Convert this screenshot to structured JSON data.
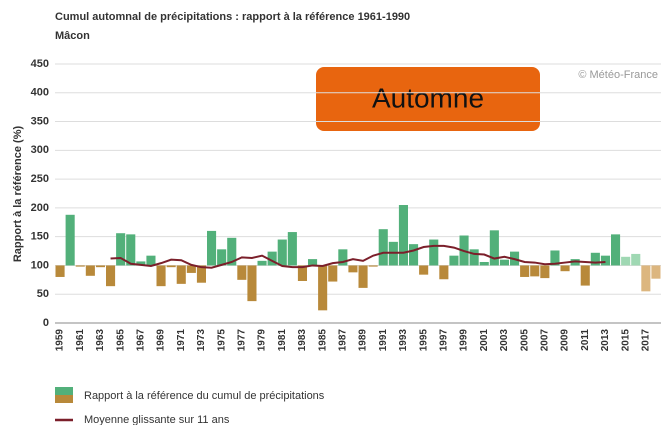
{
  "chart_data": {
    "type": "bar",
    "title": "Cumul automnal de précipitations : rapport à la référence 1961-1990",
    "subtitle": "Mâcon",
    "ylabel": "Rapport à la référence (%)",
    "watermark": "© Météo-France",
    "badge": "Automne",
    "reference": 100,
    "ylim": [
      0,
      450
    ],
    "yticks": [
      0,
      50,
      100,
      150,
      200,
      250,
      300,
      350,
      400,
      450
    ],
    "grid": true,
    "categories": [
      "1959",
      null,
      "1961",
      null,
      "1963",
      null,
      "1965",
      null,
      "1967",
      null,
      "1969",
      null,
      "1971",
      null,
      "1973",
      null,
      "1975",
      null,
      "1977",
      null,
      "1979",
      null,
      "1981",
      null,
      "1983",
      null,
      "1985",
      null,
      "1987",
      null,
      "1989",
      null,
      "1991",
      null,
      "1993",
      null,
      "1995",
      null,
      "1997",
      null,
      "1999",
      null,
      "2001",
      null,
      "2003",
      null,
      "2005",
      null,
      "2007",
      null,
      "2009",
      null,
      "2011",
      null,
      "2013",
      null,
      "2015",
      null,
      "2017",
      null
    ],
    "series": [
      {
        "name": "Rapport à la référence du cumul de précipitations",
        "color": "#52b07a",
        "color_below": "#b8893a",
        "values": [
          80,
          188,
          98,
          82,
          97,
          64,
          156,
          154,
          107,
          117,
          64,
          97,
          68,
          87,
          70,
          160,
          128,
          148,
          75,
          38,
          108,
          124,
          145,
          158,
          73,
          111,
          22,
          72,
          128,
          88,
          61,
          98,
          163,
          141,
          205,
          137,
          84,
          145,
          76,
          117,
          152,
          128,
          106,
          161,
          110,
          124,
          80,
          81,
          78,
          126,
          90,
          111,
          65,
          122,
          117,
          154,
          115,
          120,
          55,
          77
        ],
        "colors": [
          "#b8893a",
          "#52b07a",
          "#b8893a",
          "#b8893a",
          "#b8893a",
          "#b8893a",
          "#52b07a",
          "#52b07a",
          "#52b07a",
          "#52b07a",
          "#b8893a",
          "#b8893a",
          "#b8893a",
          "#b8893a",
          "#b8893a",
          "#52b07a",
          "#52b07a",
          "#52b07a",
          "#b8893a",
          "#b8893a",
          "#52b07a",
          "#52b07a",
          "#52b07a",
          "#52b07a",
          "#b8893a",
          "#52b07a",
          "#b8893a",
          "#b8893a",
          "#52b07a",
          "#b8893a",
          "#b8893a",
          "#b8893a",
          "#52b07a",
          "#52b07a",
          "#52b07a",
          "#52b07a",
          "#b8893a",
          "#52b07a",
          "#b8893a",
          "#52b07a",
          "#52b07a",
          "#52b07a",
          "#52b07a",
          "#52b07a",
          "#52b07a",
          "#52b07a",
          "#b8893a",
          "#b8893a",
          "#b8893a",
          "#52b07a",
          "#b8893a",
          "#52b07a",
          "#b8893a",
          "#52b07a",
          "#52b07a",
          "#52b07a",
          "#9fd8b3",
          "#9fd8b3",
          "#dcb67f",
          "#dcb67f"
        ]
      },
      {
        "name": "Moyenne glissante sur 11 ans",
        "type": "line",
        "color": "#7b1f2a",
        "values": [
          null,
          null,
          null,
          null,
          null,
          112,
          113,
          103,
          101,
          99,
          104,
          110,
          109,
          101,
          97,
          96,
          101,
          106,
          114,
          113,
          117,
          108,
          99,
          97,
          97,
          100,
          99,
          104,
          106,
          111,
          108,
          117,
          122,
          122,
          122,
          126,
          132,
          134,
          134,
          131,
          125,
          120,
          119,
          112,
          115,
          111,
          106,
          105,
          102,
          103,
          105,
          107,
          106,
          105,
          106,
          null,
          null,
          null,
          null,
          null
        ]
      }
    ]
  }
}
